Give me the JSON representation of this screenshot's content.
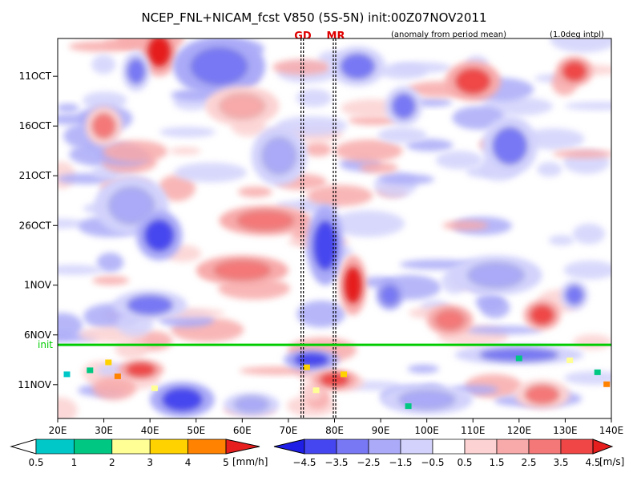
{
  "chart_data": {
    "type": "heatmap",
    "title": "NCEP_FNL+NICAM_fcst V850 (5S-5N) init:00Z07NOV2011",
    "note_left": "(anomaly from period mean)",
    "note_right": "(1.0deg intpl)",
    "x_axis": {
      "ticks": [
        "20E",
        "30E",
        "40E",
        "50E",
        "60E",
        "70E",
        "80E",
        "90E",
        "100E",
        "110E",
        "120E",
        "130E",
        "140E"
      ],
      "range_deg": [
        20,
        140
      ]
    },
    "y_axis": {
      "ticks": [
        {
          "label": "11OCT",
          "day": 11
        },
        {
          "label": "16OCT",
          "day": 16
        },
        {
          "label": "21OCT",
          "day": 21
        },
        {
          "label": "26OCT",
          "day": 26
        },
        {
          "label": "1NOV",
          "day": 32
        },
        {
          "label": "6NOV",
          "day": 37
        },
        {
          "label": "11NOV",
          "day": 42
        }
      ],
      "range_day": [
        7.2,
        45.4
      ]
    },
    "markers": [
      {
        "label": "GD",
        "lon": 73
      },
      {
        "label": "MR",
        "lon": 80
      }
    ],
    "init_line": {
      "label": "init",
      "day": 38,
      "color": "#00cc00"
    },
    "precip_colorbar": {
      "unit": "[mm/h]",
      "ticks": [
        "0.5",
        "1",
        "2",
        "3",
        "4",
        "5"
      ],
      "colors": [
        "#00c8c8",
        "#00c882",
        "#ffff96",
        "#ffd200",
        "#ff8200"
      ]
    },
    "wind_colorbar": {
      "unit": "[m/s]",
      "ticks": [
        "-4.5",
        "-3.5",
        "-2.5",
        "-1.5",
        "-0.5",
        "0.5",
        "1.5",
        "2.5",
        "3.5",
        "4.5"
      ],
      "colors": [
        "#1e1ee6",
        "#4646f0",
        "#7878f5",
        "#aaaaf8",
        "#d2d2fc",
        "#ffffff",
        "#fcd2d2",
        "#f8aaaa",
        "#f57878",
        "#f04646",
        "#e61e1e"
      ]
    },
    "anomaly_blobs": [
      {
        "lon": 42,
        "day": 8.5,
        "rlon": 4,
        "rday": 2.5,
        "value": 4.5
      },
      {
        "lon": 37,
        "day": 10.5,
        "rlon": 3,
        "rday": 2,
        "value": -3
      },
      {
        "lon": 55,
        "day": 10,
        "rlon": 10,
        "rday": 3,
        "value": -3.5
      },
      {
        "lon": 85,
        "day": 10,
        "rlon": 6,
        "rday": 2,
        "value": -3
      },
      {
        "lon": 110,
        "day": 11.5,
        "rlon": 6,
        "rday": 2,
        "value": 4
      },
      {
        "lon": 132,
        "day": 10.5,
        "rlon": 4,
        "rday": 1.5,
        "value": 4
      },
      {
        "lon": 95,
        "day": 14,
        "rlon": 4,
        "rday": 2,
        "value": -3
      },
      {
        "lon": 30,
        "day": 16,
        "rlon": 4,
        "rday": 2,
        "value": 2.5
      },
      {
        "lon": 60,
        "day": 14,
        "rlon": 8,
        "rday": 2,
        "value": 2
      },
      {
        "lon": 68,
        "day": 19,
        "rlon": 6,
        "rday": 3,
        "value": -2.5
      },
      {
        "lon": 118,
        "day": 18,
        "rlon": 6,
        "rday": 3,
        "value": -3
      },
      {
        "lon": 36,
        "day": 24,
        "rlon": 8,
        "rday": 3,
        "value": -2
      },
      {
        "lon": 42,
        "day": 27,
        "rlon": 5,
        "rday": 2.5,
        "value": -4.5
      },
      {
        "lon": 65,
        "day": 25.5,
        "rlon": 10,
        "rday": 1.5,
        "value": 3
      },
      {
        "lon": 78,
        "day": 28,
        "rlon": 4,
        "rday": 4,
        "value": -4
      },
      {
        "lon": 84,
        "day": 32,
        "rlon": 3,
        "rday": 3,
        "value": 4.5
      },
      {
        "lon": 60,
        "day": 30.5,
        "rlon": 10,
        "rday": 1.5,
        "value": 3
      },
      {
        "lon": 40,
        "day": 34,
        "rlon": 8,
        "rday": 1.5,
        "value": -3
      },
      {
        "lon": 92,
        "day": 33,
        "rlon": 3,
        "rday": 1.5,
        "value": -3.5
      },
      {
        "lon": 115,
        "day": 31,
        "rlon": 10,
        "rday": 2,
        "value": -2
      },
      {
        "lon": 105,
        "day": 35.5,
        "rlon": 5,
        "rday": 1.5,
        "value": 3
      },
      {
        "lon": 125,
        "day": 35,
        "rlon": 4,
        "rday": 1.5,
        "value": 3.5
      },
      {
        "lon": 132,
        "day": 33,
        "rlon": 3,
        "rday": 1.5,
        "value": -3
      },
      {
        "lon": 75,
        "day": 39.5,
        "rlon": 6,
        "rday": 1,
        "value": -4.5
      },
      {
        "lon": 120,
        "day": 39,
        "rlon": 14,
        "rday": 1,
        "value": -3
      },
      {
        "lon": 38,
        "day": 40.5,
        "rlon": 5,
        "rday": 1,
        "value": 4
      },
      {
        "lon": 80,
        "day": 41.5,
        "rlon": 5,
        "rday": 1,
        "value": 4
      },
      {
        "lon": 47,
        "day": 43.5,
        "rlon": 7,
        "rday": 1.8,
        "value": -4.5
      },
      {
        "lon": 62,
        "day": 44,
        "rlon": 6,
        "rday": 1.2,
        "value": -2.5
      },
      {
        "lon": 100,
        "day": 43.5,
        "rlon": 10,
        "rday": 1.5,
        "value": -2
      },
      {
        "lon": 125,
        "day": 43,
        "rlon": 6,
        "rday": 1.5,
        "value": 2.5
      }
    ],
    "precip_cells": [
      {
        "lon": 31,
        "day": 39.8,
        "value": 3
      },
      {
        "lon": 27,
        "day": 40.6,
        "value": 1.5
      },
      {
        "lon": 33,
        "day": 41.2,
        "value": 4.5
      },
      {
        "lon": 22,
        "day": 41.0,
        "value": 0.8
      },
      {
        "lon": 41,
        "day": 42.4,
        "value": 2.5
      },
      {
        "lon": 74,
        "day": 40.3,
        "value": 3
      },
      {
        "lon": 82,
        "day": 41.0,
        "value": 3.5
      },
      {
        "lon": 76,
        "day": 42.6,
        "value": 2
      },
      {
        "lon": 120,
        "day": 39.4,
        "value": 1.2
      },
      {
        "lon": 131,
        "day": 39.6,
        "value": 2.5
      },
      {
        "lon": 137,
        "day": 40.8,
        "value": 1.5
      },
      {
        "lon": 139,
        "day": 42.0,
        "value": 4.2
      },
      {
        "lon": 96,
        "day": 44.2,
        "value": 1.2
      }
    ]
  }
}
